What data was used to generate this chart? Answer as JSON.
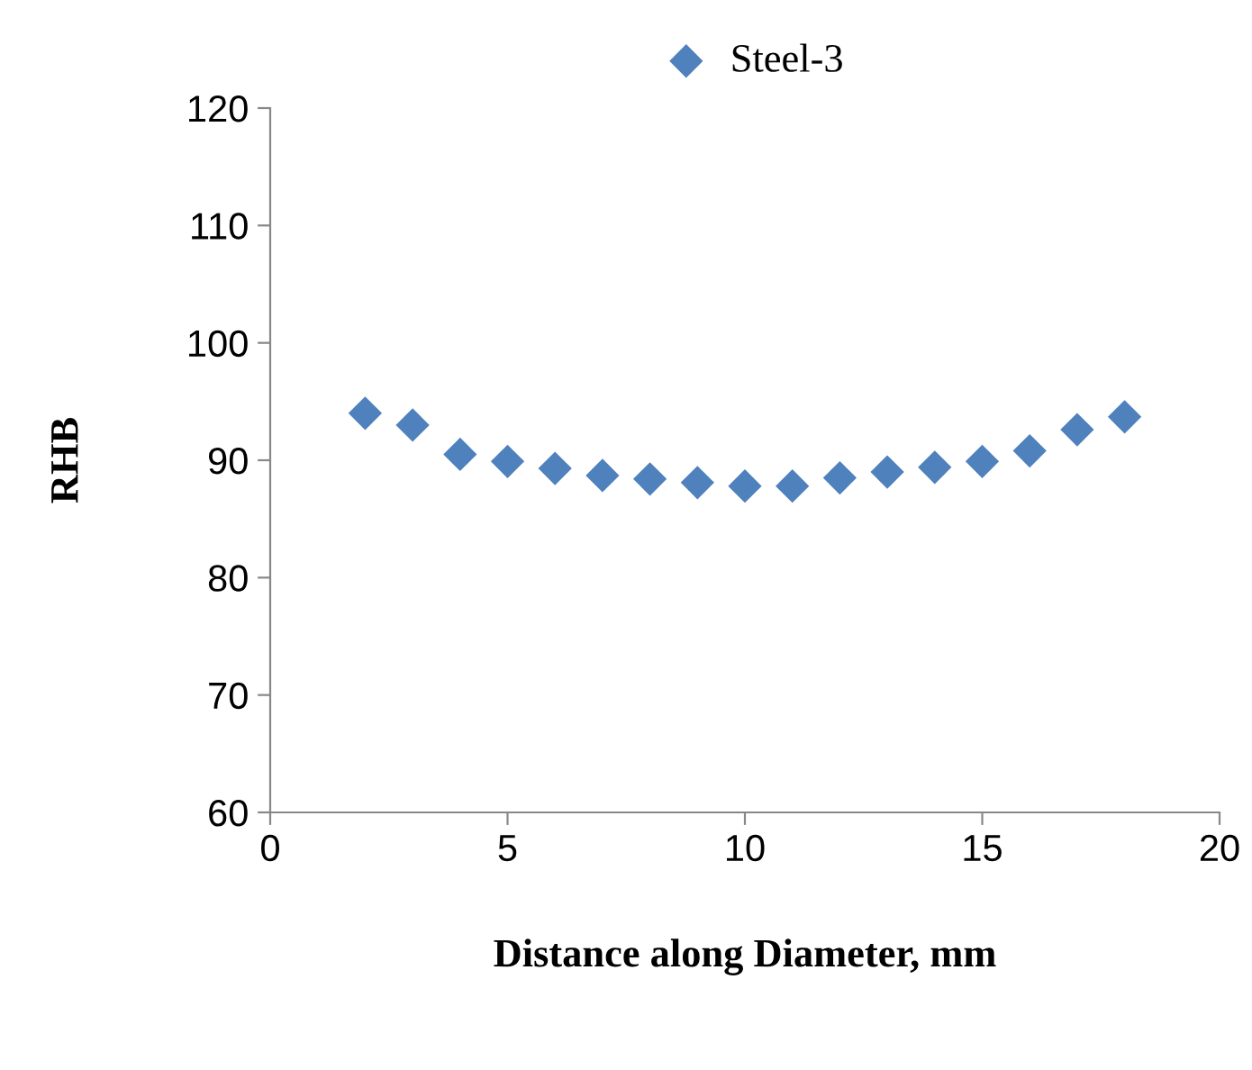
{
  "chart_data": {
    "type": "scatter",
    "xlabel": "Distance along Diameter, mm",
    "ylabel": "RHB",
    "x": [
      2,
      3,
      4,
      5,
      6,
      7,
      8,
      9,
      10,
      11,
      12,
      13,
      14,
      15,
      16,
      17,
      18
    ],
    "series": [
      {
        "name": "Steel-3",
        "color": "#4f81bd",
        "values": [
          94.0,
          93.0,
          90.5,
          89.9,
          89.3,
          88.7,
          88.4,
          88.1,
          87.8,
          87.8,
          88.5,
          89.0,
          89.4,
          89.9,
          90.8,
          92.6,
          93.7
        ]
      }
    ],
    "xlim": [
      0,
      20
    ],
    "xticks": [
      0,
      5,
      10,
      15,
      20
    ],
    "ylim": [
      60,
      120
    ],
    "yticks": [
      60,
      70,
      80,
      90,
      100,
      110,
      120
    ],
    "marker": "diamond",
    "grid": false,
    "legend": "top"
  }
}
